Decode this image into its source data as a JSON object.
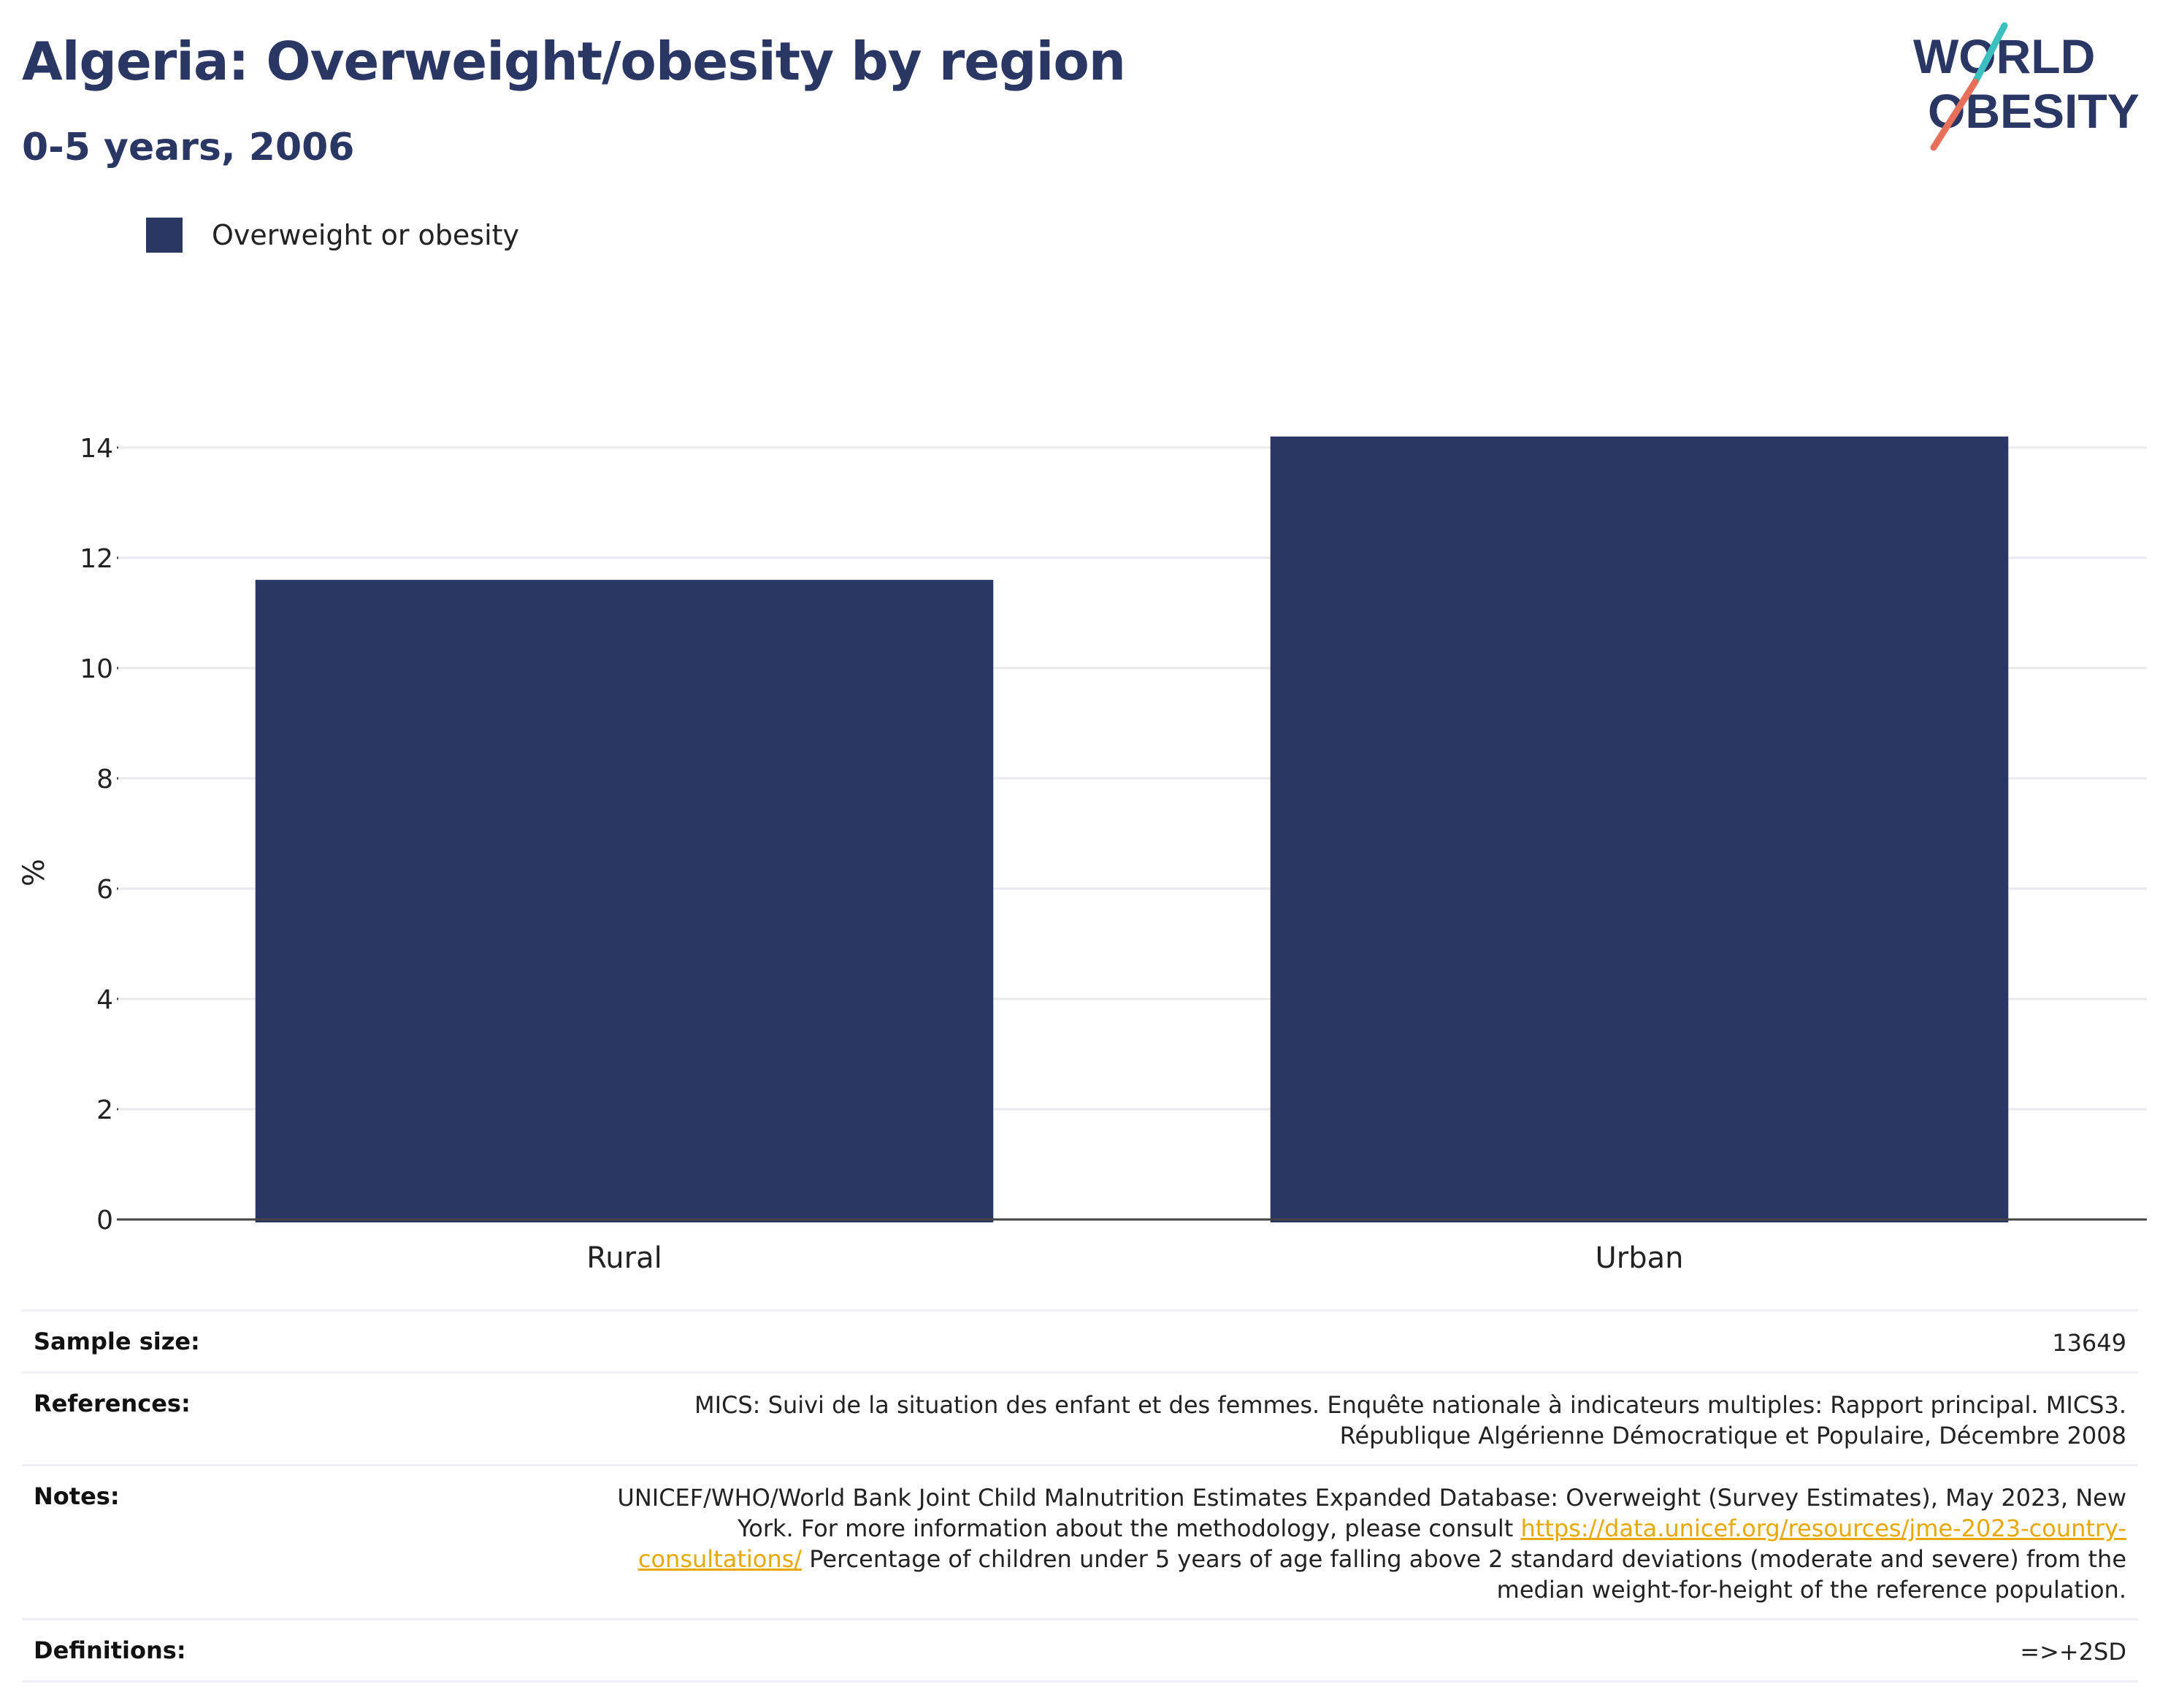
{
  "header": {
    "title": "Algeria: Overweight/obesity by region",
    "subtitle": "0-5 years, 2006"
  },
  "logo": {
    "line1": "WORLD",
    "line2": "OBESITY"
  },
  "colors": {
    "bar": "#2a3663",
    "title": "#2a3663",
    "link": "#e8a800",
    "logo_teal": "#3cbfbf",
    "logo_coral": "#e8705a"
  },
  "chart_data": {
    "type": "bar",
    "categories": [
      "Rural",
      "Urban"
    ],
    "series": [
      {
        "name": "Overweight or obesity",
        "values": [
          11.6,
          14.2
        ]
      }
    ],
    "ylabel": "%",
    "xlabel": "",
    "ylim": [
      0,
      14.7
    ],
    "yticks": [
      0,
      2,
      4,
      6,
      8,
      10,
      12,
      14
    ],
    "grid": true,
    "legend": "top-left"
  },
  "info": {
    "sample_size_label": "Sample size:",
    "sample_size_value": "13649",
    "references_label": "References:",
    "references_value": "MICS: Suivi de la situation des enfant et des femmes. Enquête nationale à indicateurs multiples: Rapport principal. MICS3. République Algérienne Démocratique et Populaire, Décembre 2008",
    "notes_label": "Notes:",
    "notes_text_before": "UNICEF/WHO/World Bank Joint Child Malnutrition Estimates Expanded Database: Overweight (Survey Estimates), May 2023, New York. For more information about the methodology, please consult ",
    "notes_link": "https://data.unicef.org/resources/jme-2023-country-consultations/",
    "notes_text_after": " Percentage of children under 5 years of age falling above 2 standard deviations (moderate and severe) from the median weight-for-height of the reference population.",
    "definitions_label": "Definitions:",
    "definitions_value": "=>+2SD"
  }
}
